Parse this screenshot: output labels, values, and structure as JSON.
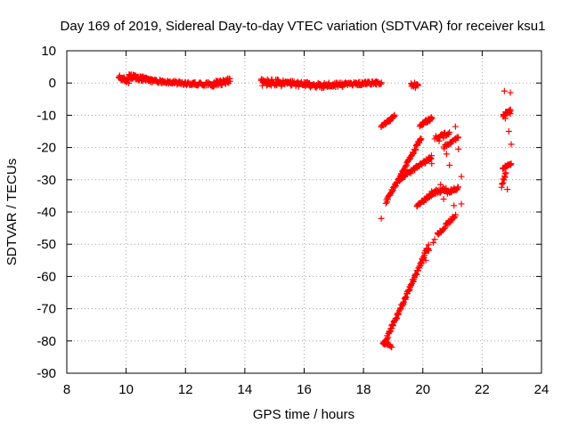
{
  "chart_data": {
    "type": "scatter",
    "title": "Day 169 of 2019, Sidereal Day-to-day VTEC variation (SDTVAR) for receiver ksu1",
    "xlabel": "GPS time / hours",
    "ylabel": "SDTVAR / TECUs",
    "xlim": [
      8,
      24
    ],
    "ylim": [
      -90,
      10
    ],
    "xticks": [
      8,
      10,
      12,
      14,
      16,
      18,
      20,
      22,
      24
    ],
    "yticks": [
      10,
      0,
      -10,
      -20,
      -30,
      -40,
      -50,
      -60,
      -70,
      -80,
      -90
    ],
    "grid": true,
    "legend": "none",
    "marker": "plus",
    "color": "#ff0000",
    "segments": [
      {
        "x_start": 9.75,
        "x_end": 10.1,
        "y_start": 1.8,
        "y_end": 0.5,
        "count": 30,
        "spread": 1.3
      },
      {
        "x_start": 10.1,
        "x_end": 10.8,
        "y_start": 2.0,
        "y_end": 0.8,
        "count": 55,
        "spread": 1.6
      },
      {
        "x_start": 10.8,
        "x_end": 12.0,
        "y_start": 0.8,
        "y_end": -0.2,
        "count": 70,
        "spread": 1.0
      },
      {
        "x_start": 12.0,
        "x_end": 12.9,
        "y_start": -0.2,
        "y_end": -0.3,
        "count": 50,
        "spread": 1.0
      },
      {
        "x_start": 12.9,
        "x_end": 13.5,
        "y_start": -0.3,
        "y_end": 0.8,
        "count": 40,
        "spread": 1.8
      },
      {
        "x_start": 14.55,
        "x_end": 15.3,
        "y_start": 0.2,
        "y_end": 0.0,
        "count": 50,
        "spread": 2.2
      },
      {
        "x_start": 15.3,
        "x_end": 16.5,
        "y_start": 0.0,
        "y_end": -0.8,
        "count": 70,
        "spread": 1.6
      },
      {
        "x_start": 16.5,
        "x_end": 17.3,
        "y_start": -0.8,
        "y_end": -0.4,
        "count": 50,
        "spread": 1.6
      },
      {
        "x_start": 17.3,
        "x_end": 18.6,
        "y_start": -0.4,
        "y_end": 0.1,
        "count": 70,
        "spread": 1.0
      },
      {
        "x_start": 18.6,
        "x_end": 19.05,
        "y_start": -13.5,
        "y_end": -10.3,
        "count": 25,
        "spread": 0.9
      },
      {
        "x_start": 18.75,
        "x_end": 19.95,
        "y_start": -37.0,
        "y_end": -17.0,
        "count": 70,
        "spread": 1.0
      },
      {
        "x_start": 19.2,
        "x_end": 20.3,
        "y_start": -30.0,
        "y_end": -23.0,
        "count": 55,
        "spread": 1.0
      },
      {
        "x_start": 19.6,
        "x_end": 19.85,
        "y_start": -0.5,
        "y_end": -0.5,
        "count": 12,
        "spread": 1.2
      },
      {
        "x_start": 19.9,
        "x_end": 20.3,
        "y_start": -13.0,
        "y_end": -11.0,
        "count": 25,
        "spread": 1.0
      },
      {
        "x_start": 18.7,
        "x_end": 20.2,
        "y_start": -81.0,
        "y_end": -50.5,
        "count": 100,
        "spread": 1.2
      },
      {
        "x_start": 18.65,
        "x_end": 18.95,
        "y_start": -80.5,
        "y_end": -81.5,
        "count": 15,
        "spread": 1.0
      },
      {
        "x_start": 19.8,
        "x_end": 20.4,
        "y_start": -38.0,
        "y_end": -34.0,
        "count": 35,
        "spread": 1.0
      },
      {
        "x_start": 20.3,
        "x_end": 20.8,
        "y_start": -34.0,
        "y_end": -33.0,
        "count": 25,
        "spread": 1.2
      },
      {
        "x_start": 20.4,
        "x_end": 20.9,
        "y_start": -17.0,
        "y_end": -15.5,
        "count": 18,
        "spread": 1.2
      },
      {
        "x_start": 20.7,
        "x_end": 21.2,
        "y_start": -20.0,
        "y_end": -17.0,
        "count": 20,
        "spread": 1.2
      },
      {
        "x_start": 20.8,
        "x_end": 21.2,
        "y_start": -34.0,
        "y_end": -32.5,
        "count": 20,
        "spread": 1.0
      },
      {
        "x_start": 20.5,
        "x_end": 21.1,
        "y_start": -47.0,
        "y_end": -41.0,
        "count": 25,
        "spread": 1.0
      },
      {
        "x_start": 22.7,
        "x_end": 22.95,
        "y_start": -10.0,
        "y_end": -8.5,
        "count": 18,
        "spread": 1.0
      },
      {
        "x_start": 22.7,
        "x_end": 22.95,
        "y_start": -26.5,
        "y_end": -25.0,
        "count": 15,
        "spread": 1.0
      },
      {
        "x_start": 22.65,
        "x_end": 22.8,
        "y_start": -32.0,
        "y_end": -28.0,
        "count": 10,
        "spread": 1.0
      }
    ],
    "points": [
      [
        18.6,
        -42.0
      ],
      [
        20.3,
        -25.0
      ],
      [
        20.6,
        -31.5
      ],
      [
        20.7,
        -36.0
      ],
      [
        20.8,
        -22.0
      ],
      [
        20.9,
        -25.5
      ],
      [
        21.05,
        -38.0
      ],
      [
        21.1,
        -13.5
      ],
      [
        21.3,
        -37.5
      ],
      [
        21.3,
        -29.0
      ],
      [
        21.2,
        -20.5
      ],
      [
        20.4,
        -48.5
      ],
      [
        20.5,
        -46.5
      ],
      [
        20.2,
        -52.0
      ],
      [
        20.35,
        -49.5
      ],
      [
        20.1,
        -55.0
      ],
      [
        19.95,
        -55.5
      ],
      [
        20.55,
        -18.0
      ],
      [
        20.7,
        -17.0
      ],
      [
        21.0,
        -41.5
      ],
      [
        22.75,
        -2.5
      ],
      [
        22.95,
        -3.0
      ],
      [
        22.9,
        -15.0
      ],
      [
        22.98,
        -19.0
      ],
      [
        22.98,
        -25.0
      ],
      [
        22.95,
        -9.5
      ],
      [
        22.78,
        -11.0
      ],
      [
        22.85,
        -33.0
      ],
      [
        19.8,
        -0.5
      ],
      [
        19.75,
        -1.5
      ],
      [
        20.6,
        -33.5
      ],
      [
        20.95,
        -33.0
      ]
    ]
  }
}
